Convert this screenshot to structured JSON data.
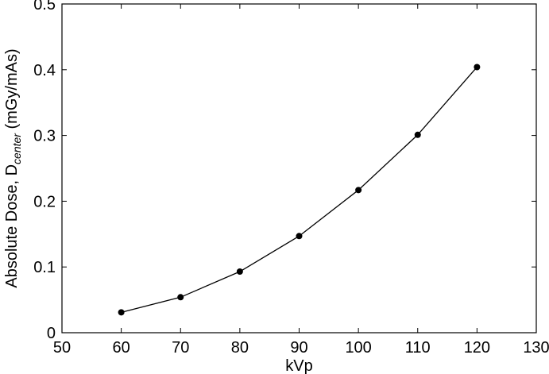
{
  "chart_data": {
    "type": "line",
    "xlabel": "kVp",
    "ylabel": {
      "prefix": "Absolute Dose, D",
      "subscript": "center",
      "suffix": " (mGy/mAs)"
    },
    "xlim": [
      50,
      130
    ],
    "ylim": [
      0,
      0.5
    ],
    "xticks": [
      50,
      60,
      70,
      80,
      90,
      100,
      110,
      120,
      130
    ],
    "yticks": [
      0,
      0.1,
      0.2,
      0.3,
      0.4,
      0.5
    ],
    "xtick_labels": [
      "50",
      "60",
      "70",
      "80",
      "90",
      "100",
      "110",
      "120",
      "130"
    ],
    "ytick_labels": [
      "0",
      "0.1",
      "0.2",
      "0.3",
      "0.4",
      "0.5"
    ],
    "grid": false,
    "legend": "none",
    "series": [
      {
        "x": [
          60,
          70,
          80,
          90,
          100,
          110,
          120
        ],
        "y": [
          0.031,
          0.054,
          0.093,
          0.147,
          0.217,
          0.301,
          0.404
        ],
        "color": "#000000",
        "marker": "circle"
      }
    ]
  }
}
